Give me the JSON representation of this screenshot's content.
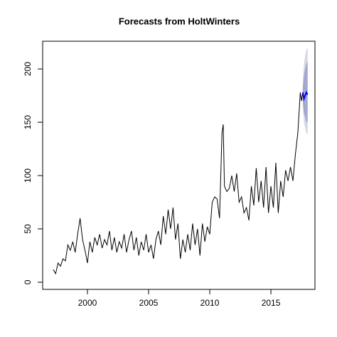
{
  "chart_data": {
    "type": "line",
    "title": "Forecasts from HoltWinters",
    "x": [
      1997.2,
      1997.4,
      1997.6,
      1997.8,
      1998.0,
      1998.2,
      1998.4,
      1998.6,
      1998.8,
      1999.0,
      1999.2,
      1999.4,
      1999.6,
      1999.8,
      2000.0,
      2000.2,
      2000.4,
      2000.6,
      2000.8,
      2001.0,
      2001.2,
      2001.4,
      2001.6,
      2001.8,
      2002.0,
      2002.2,
      2002.4,
      2002.6,
      2002.8,
      2003.0,
      2003.2,
      2003.4,
      2003.6,
      2003.8,
      2004.0,
      2004.2,
      2004.4,
      2004.6,
      2004.8,
      2005.0,
      2005.2,
      2005.4,
      2005.6,
      2005.8,
      2006.0,
      2006.2,
      2006.4,
      2006.6,
      2006.8,
      2007.0,
      2007.2,
      2007.4,
      2007.6,
      2007.8,
      2008.0,
      2008.2,
      2008.4,
      2008.6,
      2008.8,
      2009.0,
      2009.2,
      2009.4,
      2009.6,
      2009.8,
      2010.0,
      2010.2,
      2010.4,
      2010.6,
      2010.8,
      2011.0,
      2011.1,
      2011.2,
      2011.4,
      2011.6,
      2011.8,
      2012.0,
      2012.2,
      2012.4,
      2012.6,
      2012.8,
      2013.0,
      2013.2,
      2013.4,
      2013.6,
      2013.8,
      2014.0,
      2014.2,
      2014.4,
      2014.6,
      2014.8,
      2015.0,
      2015.2,
      2015.4,
      2015.6,
      2015.8,
      2016.0,
      2016.2,
      2016.4,
      2016.6,
      2016.8,
      2017.0,
      2017.2,
      2017.4,
      2017.5,
      2017.6
    ],
    "values": [
      12,
      8,
      18,
      15,
      22,
      20,
      35,
      30,
      38,
      28,
      45,
      60,
      40,
      30,
      18,
      38,
      28,
      42,
      35,
      45,
      32,
      40,
      35,
      48,
      30,
      42,
      28,
      38,
      32,
      45,
      28,
      40,
      48,
      30,
      42,
      25,
      38,
      30,
      45,
      28,
      35,
      22,
      40,
      48,
      35,
      62,
      45,
      68,
      50,
      70,
      40,
      55,
      22,
      40,
      28,
      45,
      30,
      55,
      35,
      50,
      25,
      55,
      38,
      52,
      45,
      75,
      80,
      78,
      60,
      140,
      148,
      90,
      85,
      88,
      100,
      85,
      102,
      75,
      80,
      65,
      70,
      58,
      90,
      72,
      107,
      75,
      95,
      70,
      108,
      65,
      90,
      70,
      112,
      65,
      95,
      80,
      105,
      95,
      108,
      95,
      120,
      140,
      178,
      170,
      178
    ],
    "color": "#000000",
    "forecast": {
      "x": [
        2017.6,
        2017.7,
        2017.8,
        2017.9,
        2018.0
      ],
      "mean": [
        178,
        172,
        175,
        178,
        176
      ],
      "lo80": [
        170,
        158,
        155,
        150,
        150
      ],
      "hi80": [
        182,
        195,
        200,
        205,
        207
      ],
      "lo95": [
        168,
        150,
        145,
        140,
        138
      ],
      "hi95": [
        185,
        205,
        212,
        218,
        220
      ],
      "color": "#0000ff",
      "band80_color": "#a5a9cf",
      "band95_color": "#d6d7e6"
    },
    "xlim": [
      1996.34,
      2018.6
    ],
    "ylim": [
      -6.7,
      226
    ],
    "xticks": [
      2000,
      2005,
      2010,
      2015
    ],
    "yticks": [
      0,
      50,
      100,
      150,
      200
    ]
  }
}
